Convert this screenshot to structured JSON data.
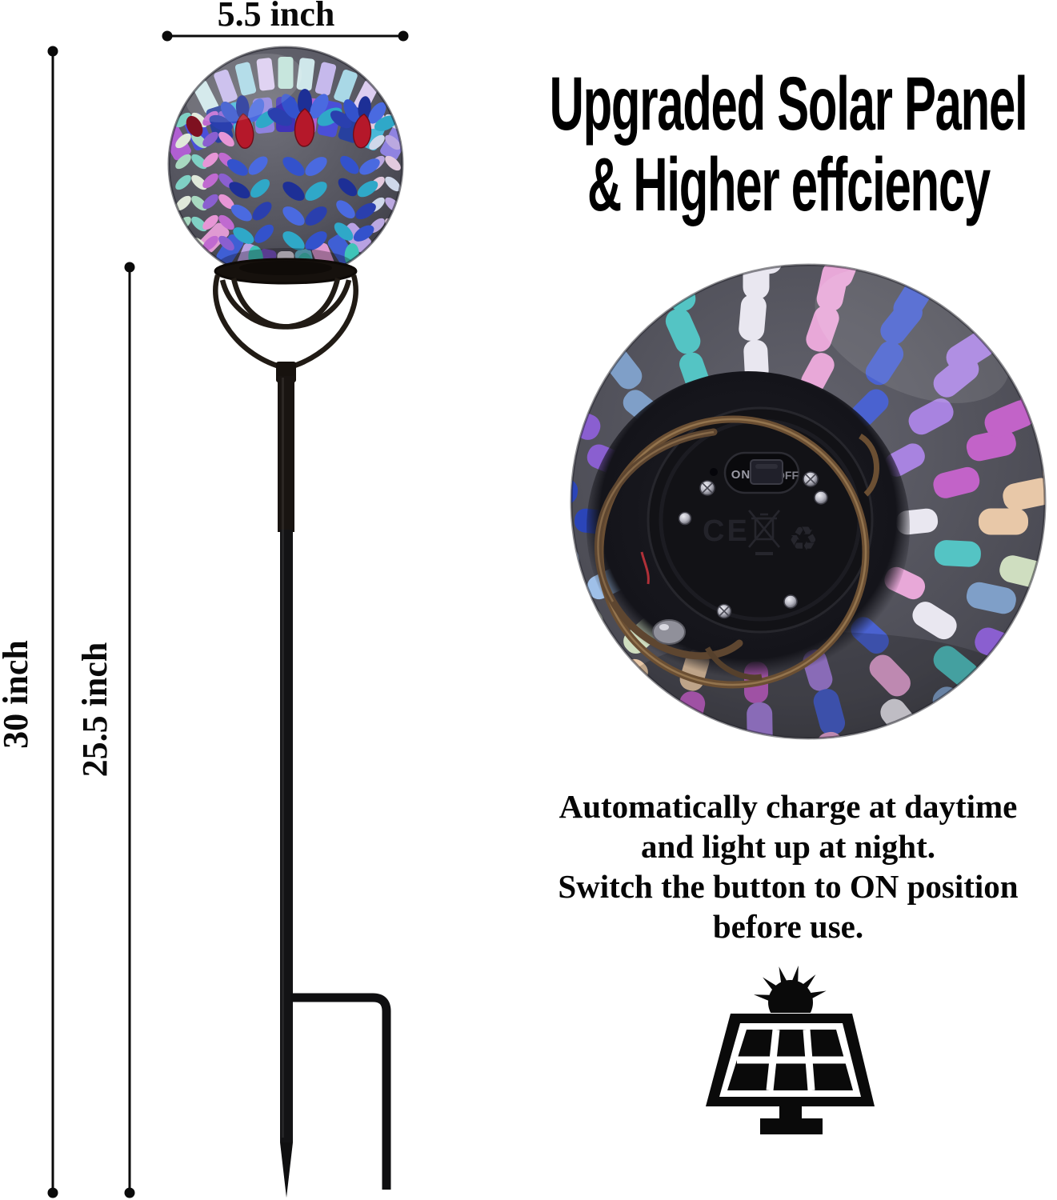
{
  "page": {
    "background": "#ffffff"
  },
  "annotations": {
    "ball_width": "5.5 inch",
    "overall_height": "30 inch",
    "stake_height": "25.5 inch"
  },
  "heading": {
    "line1": "Upgraded Solar Panel",
    "line2": "& Higher effciency"
  },
  "description": {
    "lines": [
      "Automatically charge at daytime",
      "and light up at night.",
      "Switch the button to ON position",
      "before use."
    ]
  },
  "device_back": {
    "switch_on": "ON",
    "switch_off": "OFF",
    "ce_mark": "CE",
    "recycle_glyph": "♻"
  },
  "icons": {
    "solar_panel": "solar-panel-with-sun",
    "weee": "crossed-out-wheeled-bin",
    "recycle": "recycle-arrows"
  },
  "colors": {
    "text": "#000000",
    "annotation": "#0a0a0a",
    "metal_black": "#131315",
    "bronze_wire": "#6b4f33",
    "grout": "#4e4e57",
    "red_eye": "#b5182a",
    "feather_tip": "#3fc4b8",
    "front_pale_band": [
      "#cfe7ea",
      "#c6b9ec",
      "#a9d8e6",
      "#dccdf0",
      "#bfe3d8"
    ],
    "front_bold_band": [
      "#b05fd2",
      "#4a4fd8",
      "#27409f",
      "#49b8d8",
      "#8f83e0",
      "#3f32b8"
    ],
    "front_chevron_left1": [
      "#7fd0c4",
      "#e0e8da",
      "#a8d8c0"
    ],
    "front_chevron_left2": [
      "#c06ad0",
      "#8a5fd0",
      "#e796d6"
    ],
    "front_chevron_right": [
      "#e3cade",
      "#cfd8ea",
      "#bba8e0"
    ],
    "front_bottom_band": [
      "#b9a2e2",
      "#3f5fd4",
      "#e09ad2",
      "#6ac4dc",
      "#e5dfe8",
      "#7a52c8"
    ],
    "feather_blues": [
      "#2a3fae",
      "#3352cc",
      "#1d2f96",
      "#4a6ae0",
      "#2fa8c8"
    ],
    "bottom_tiles": [
      "#e9e7f0",
      "#9fc0e8",
      "#4a62d0",
      "#8a5fd0",
      "#c263c8",
      "#54c4c4",
      "#cfdec0",
      "#e8a8d8",
      "#2b45b8",
      "#a883e0",
      "#7f9fc8",
      "#e8c8a8"
    ]
  }
}
